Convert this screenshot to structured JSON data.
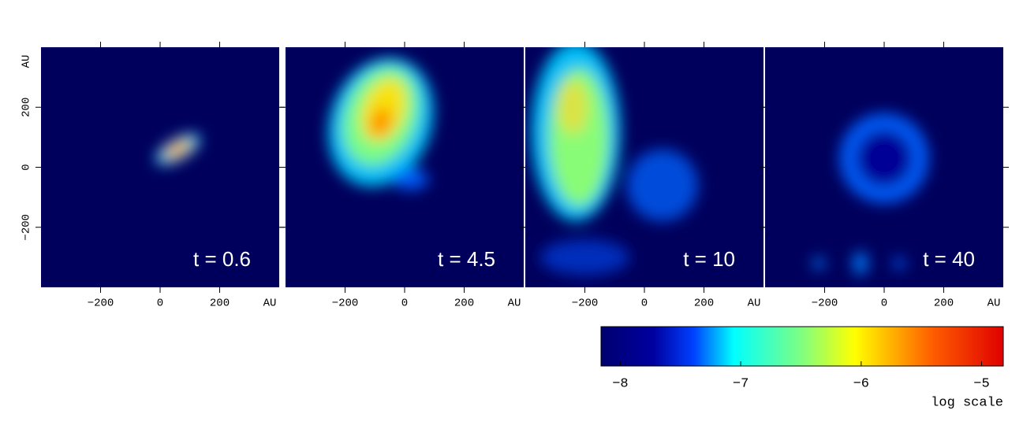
{
  "chart_data": {
    "type": "heatmap",
    "panels": [
      {
        "title": "t = 0.6"
      },
      {
        "title": "t = 4.5"
      },
      {
        "title": "t = 10"
      },
      {
        "title": "t = 40"
      }
    ],
    "xlabel": "AU",
    "ylabel": "AU",
    "xlim": [
      -400,
      400
    ],
    "ylim": [
      -400,
      400
    ],
    "xticks": [
      {
        "value": -200,
        "label": "−200"
      },
      0,
      200
    ],
    "yticks": [
      {
        "value": -200,
        "label": "−200"
      },
      0,
      200
    ],
    "colorbar": {
      "label": "log scale",
      "lim": [
        -8.16,
        -4.82
      ],
      "ticks": [
        {
          "value": -8,
          "label": "−8"
        },
        {
          "value": -7,
          "label": "−7"
        },
        {
          "value": -6,
          "label": "−6"
        },
        {
          "value": -5,
          "label": "−5"
        }
      ]
    }
  }
}
